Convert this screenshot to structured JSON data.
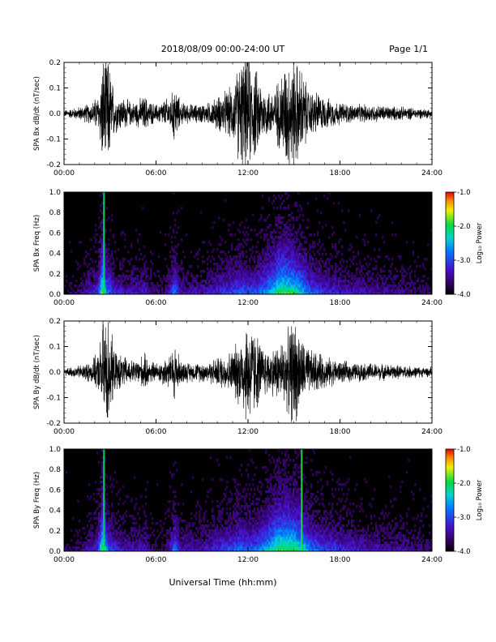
{
  "header": {
    "title": "2018/08/09  00:00-24:00 UT",
    "page": "Page 1/1"
  },
  "xaxis": {
    "label": "Universal Time (hh:mm)",
    "ticks": [
      0,
      6,
      12,
      18,
      24
    ],
    "tick_labels": [
      "00:00",
      "06:00",
      "12:00",
      "18:00",
      "24:00"
    ],
    "range_hours": [
      0,
      24
    ]
  },
  "colorbar": {
    "label": "Log₁₀ Power",
    "ticks": [
      "-1.0",
      "-2.0",
      "-3.0",
      "-4.0"
    ],
    "range": [
      -4.0,
      -1.0
    ]
  },
  "chart_data": [
    {
      "type": "line",
      "ylabel": "SPA Bx dB/dt (nT/sec)",
      "ylim": [
        -0.2,
        0.2
      ],
      "yticks": [
        "0.2",
        "0.1",
        "0.0",
        "-0.1",
        "-0.2"
      ],
      "envelope": {
        "x": [
          0,
          1,
          1.8,
          2.3,
          2.5,
          2.9,
          3.3,
          4.5,
          5.3,
          5.5,
          6,
          7,
          7.2,
          7.6,
          8.5,
          9.5,
          10.5,
          11,
          11.5,
          12,
          12.5,
          13,
          13.5,
          14,
          14.5,
          15,
          15.5,
          16,
          16.5,
          17,
          18,
          19,
          20,
          22,
          24
        ],
        "amplitude": [
          0.015,
          0.03,
          0.05,
          0.09,
          0.25,
          0.25,
          0.09,
          0.05,
          0.08,
          0.06,
          0.04,
          0.08,
          0.14,
          0.05,
          0.04,
          0.05,
          0.1,
          0.12,
          0.25,
          0.25,
          0.2,
          0.12,
          0.1,
          0.15,
          0.25,
          0.25,
          0.2,
          0.1,
          0.1,
          0.07,
          0.05,
          0.04,
          0.04,
          0.03,
          0.02
        ]
      }
    },
    {
      "type": "heatmap",
      "ylabel": "SPA Bx Freq (Hz)",
      "ylim": [
        0.0,
        1.0
      ],
      "yticks": [
        "1.0",
        "0.8",
        "0.6",
        "0.4",
        "0.2",
        "0.0"
      ],
      "z_range_log10_power": [
        -4.0,
        -1.0
      ],
      "activity": {
        "x": [
          0,
          1,
          1.5,
          2.2,
          2.5,
          2.8,
          3.2,
          4,
          5.3,
          5.6,
          6.5,
          7,
          7.2,
          7.6,
          9,
          10,
          11,
          11.5,
          12.5,
          13,
          13.5,
          14,
          14.5,
          15,
          15.5,
          16,
          17,
          18,
          20,
          22,
          24
        ],
        "level": [
          0.05,
          0.12,
          0.2,
          0.3,
          0.75,
          0.45,
          0.3,
          0.22,
          0.25,
          0.15,
          0.1,
          0.3,
          0.45,
          0.2,
          0.2,
          0.28,
          0.35,
          0.38,
          0.35,
          0.45,
          0.55,
          0.7,
          0.7,
          0.65,
          0.55,
          0.4,
          0.3,
          0.25,
          0.2,
          0.15,
          0.1
        ]
      },
      "lines": [
        {
          "hour": 2.6,
          "level": 0.8
        }
      ]
    },
    {
      "type": "line",
      "ylabel": "SPA By dB/dt (nT/sec)",
      "ylim": [
        -0.2,
        0.2
      ],
      "yticks": [
        "0.2",
        "0.1",
        "0.0",
        "-0.1",
        "-0.2"
      ],
      "envelope": {
        "x": [
          0,
          1,
          1.8,
          2.3,
          2.5,
          2.9,
          3.3,
          4.5,
          5.3,
          5.5,
          6,
          7,
          7.2,
          7.6,
          8.5,
          9.5,
          10.5,
          11,
          11.5,
          12,
          12.5,
          13,
          13.5,
          14,
          14.5,
          15,
          15.5,
          16,
          16.5,
          17,
          18,
          19,
          20,
          22,
          24
        ],
        "amplitude": [
          0.015,
          0.03,
          0.05,
          0.09,
          0.25,
          0.25,
          0.09,
          0.05,
          0.08,
          0.06,
          0.04,
          0.08,
          0.14,
          0.05,
          0.04,
          0.05,
          0.08,
          0.1,
          0.16,
          0.25,
          0.18,
          0.11,
          0.1,
          0.13,
          0.16,
          0.25,
          0.15,
          0.1,
          0.09,
          0.07,
          0.05,
          0.04,
          0.04,
          0.03,
          0.02
        ]
      }
    },
    {
      "type": "heatmap",
      "ylabel": "SPA By Freq (Hz)",
      "ylim": [
        0.0,
        1.0
      ],
      "yticks": [
        "1.0",
        "0.8",
        "0.6",
        "0.4",
        "0.2",
        "0.0"
      ],
      "z_range_log10_power": [
        -4.0,
        -1.0
      ],
      "activity": {
        "x": [
          0,
          1,
          1.5,
          2.2,
          2.5,
          2.8,
          3.2,
          4,
          5.3,
          5.6,
          6.5,
          7,
          7.2,
          7.6,
          9,
          10,
          11,
          11.5,
          12.5,
          13,
          13.5,
          14,
          14.5,
          15,
          15.5,
          16,
          17,
          18,
          20,
          22,
          24
        ],
        "level": [
          0.05,
          0.12,
          0.2,
          0.3,
          0.75,
          0.45,
          0.3,
          0.22,
          0.25,
          0.15,
          0.1,
          0.3,
          0.45,
          0.2,
          0.22,
          0.3,
          0.38,
          0.42,
          0.4,
          0.5,
          0.6,
          0.72,
          0.72,
          0.7,
          0.6,
          0.45,
          0.35,
          0.3,
          0.22,
          0.18,
          0.12
        ]
      },
      "lines": [
        {
          "hour": 2.6,
          "level": 0.8
        },
        {
          "hour": 15.5,
          "level": 1.0
        }
      ]
    }
  ]
}
